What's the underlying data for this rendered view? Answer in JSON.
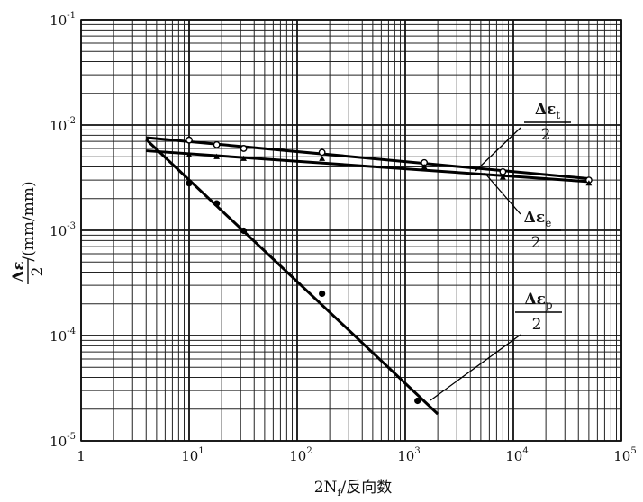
{
  "chart_data": {
    "type": "scatter",
    "scale": "log-log",
    "grid": true,
    "xlabel": {
      "text": "2N",
      "sub": "f",
      "suffix": "/反向数"
    },
    "ylabel": {
      "numerator": "Δε",
      "denominator": "2",
      "suffix": "/(mm/mm)"
    },
    "xlim": [
      1,
      100000
    ],
    "ylim": [
      1e-05,
      0.1
    ],
    "x_ticks": [
      {
        "value": 1,
        "base": "1",
        "exp": ""
      },
      {
        "value": 10,
        "base": "10",
        "exp": "1"
      },
      {
        "value": 100,
        "base": "10",
        "exp": "2"
      },
      {
        "value": 1000,
        "base": "10",
        "exp": "3"
      },
      {
        "value": 10000,
        "base": "10",
        "exp": "4"
      },
      {
        "value": 100000,
        "base": "10",
        "exp": "5"
      }
    ],
    "y_ticks": [
      {
        "value": 0.1,
        "base": "10",
        "exp": "-1"
      },
      {
        "value": 0.01,
        "base": "10",
        "exp": "-2"
      },
      {
        "value": 0.001,
        "base": "10",
        "exp": "-3"
      },
      {
        "value": 0.0001,
        "base": "10",
        "exp": "-4"
      },
      {
        "value": 1e-05,
        "base": "10",
        "exp": "-5"
      }
    ],
    "series": [
      {
        "name": "Δεt/2",
        "label": {
          "numerator": "Δε",
          "sub": "t",
          "denominator": "2"
        },
        "marker": "open",
        "line": [
          [
            4,
            0.0076
          ],
          [
            50000,
            0.0031
          ]
        ],
        "points": [
          [
            10,
            0.0072
          ],
          [
            18,
            0.0065
          ],
          [
            32,
            0.006
          ],
          [
            170,
            0.0055
          ],
          [
            1500,
            0.0044
          ],
          [
            8000,
            0.0036
          ],
          [
            50000,
            0.003
          ]
        ]
      },
      {
        "name": "Δεe/2",
        "label": {
          "numerator": "Δε",
          "sub": "e",
          "denominator": "2"
        },
        "marker": "half",
        "line": [
          [
            4,
            0.0057
          ],
          [
            50000,
            0.0029
          ]
        ],
        "points": [
          [
            10,
            0.0052
          ],
          [
            18,
            0.005
          ],
          [
            32,
            0.0048
          ],
          [
            170,
            0.0048
          ],
          [
            1500,
            0.004
          ],
          [
            8000,
            0.0032
          ],
          [
            50000,
            0.0028
          ]
        ]
      },
      {
        "name": "Δεp/2",
        "label": {
          "numerator": "Δε",
          "sub": "p",
          "denominator": "2"
        },
        "marker": "filled",
        "line": [
          [
            4,
            0.0073
          ],
          [
            2000,
            1.8e-05
          ]
        ],
        "points": [
          [
            10,
            0.0028
          ],
          [
            18,
            0.0018
          ],
          [
            32,
            0.00099
          ],
          [
            170,
            0.00025
          ],
          [
            1300,
            2.4e-05
          ]
        ]
      }
    ]
  }
}
